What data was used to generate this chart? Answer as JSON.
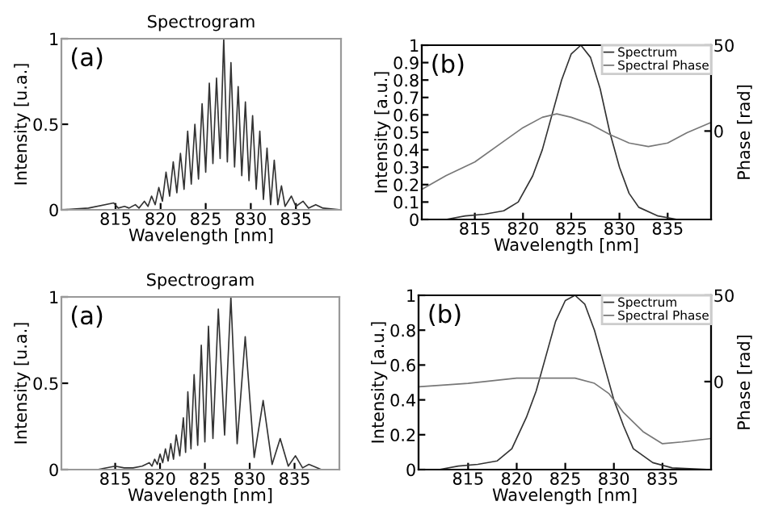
{
  "chart_data": [
    {
      "type": "line",
      "title": "Spectrogram",
      "xlabel": "Wavelength [nm]",
      "ylabel": "Intensity [u.a.]",
      "annotations": [
        "(a)"
      ],
      "xlim": [
        809,
        840
      ],
      "xticks": [
        815,
        820,
        825,
        830,
        835
      ],
      "ylim": [
        0,
        1
      ],
      "yticks": [
        0,
        0.5,
        1
      ],
      "grid": false,
      "legend": false,
      "series": [
        {
          "color": "#333333",
          "x": [
            809,
            812,
            814.8,
            815.3,
            816,
            816.5,
            817.2,
            817.6,
            818.2,
            818.6,
            819.0,
            819.4,
            819.8,
            820.2,
            820.6,
            821.0,
            821.4,
            821.8,
            822.2,
            822.6,
            823.0,
            823.4,
            823.8,
            824.2,
            824.6,
            825.0,
            825.4,
            825.8,
            826.2,
            826.6,
            827.0,
            827.4,
            827.8,
            828.2,
            828.6,
            829.0,
            829.4,
            829.8,
            830.2,
            830.6,
            831.0,
            831.4,
            831.8,
            832.2,
            832.6,
            833.0,
            833.4,
            833.8,
            834.5,
            835.0,
            835.8,
            836.4,
            837.2,
            838,
            840
          ],
          "values": [
            0.0,
            0.01,
            0.04,
            0.01,
            0.02,
            0.01,
            0.03,
            0.01,
            0.05,
            0.02,
            0.08,
            0.03,
            0.13,
            0.05,
            0.22,
            0.08,
            0.28,
            0.1,
            0.33,
            0.12,
            0.46,
            0.15,
            0.5,
            0.18,
            0.62,
            0.22,
            0.74,
            0.27,
            0.77,
            0.3,
            1.0,
            0.28,
            0.86,
            0.25,
            0.72,
            0.2,
            0.63,
            0.17,
            0.55,
            0.12,
            0.46,
            0.06,
            0.36,
            0.03,
            0.29,
            0.03,
            0.14,
            0.02,
            0.08,
            0.02,
            0.05,
            0.01,
            0.03,
            0.01,
            0.0
          ]
        }
      ]
    },
    {
      "type": "line",
      "xlabel": "Wavelength [nm]",
      "ylabel": "Intensity [a.u.]",
      "y2label": "Phase [rad]",
      "annotations": [
        "(b)"
      ],
      "xlim": [
        809.5,
        839.5
      ],
      "xticks": [
        815,
        820,
        825,
        830,
        835
      ],
      "ylim": [
        0,
        1
      ],
      "yticks": [
        0,
        0.1,
        0.2,
        0.3,
        0.4,
        0.5,
        0.6,
        0.7,
        0.8,
        0.9,
        1
      ],
      "y2lim": [
        -51.5,
        50
      ],
      "y2ticks": [
        0,
        50
      ],
      "grid": false,
      "legend": "top right",
      "series": [
        {
          "name": "Spectrum",
          "color": "#333333",
          "x": [
            809.5,
            812,
            814,
            816,
            818,
            819.5,
            821,
            822,
            823,
            824,
            825,
            826,
            827,
            828,
            829,
            830,
            831,
            832,
            834,
            836,
            839.5
          ],
          "values": [
            0.0,
            0.0,
            0.02,
            0.03,
            0.05,
            0.1,
            0.25,
            0.4,
            0.6,
            0.8,
            0.95,
            1.0,
            0.93,
            0.75,
            0.5,
            0.3,
            0.15,
            0.07,
            0.02,
            0.0,
            0.0
          ]
        },
        {
          "name": "Spectral Phase",
          "color": "#777777",
          "axis": "y2",
          "x": [
            809.5,
            812,
            815,
            818,
            820,
            822,
            823.5,
            825,
            827,
            829,
            831,
            833,
            835,
            837,
            839.5
          ],
          "values": [
            -34,
            -26,
            -18,
            -6,
            2,
            8,
            10,
            8,
            4,
            -2,
            -7,
            -9,
            -7,
            -1,
            5
          ]
        }
      ]
    },
    {
      "type": "line",
      "title": "Spectrogram",
      "xlabel": "Wavelength [nm]",
      "ylabel": "Intensity [u.a.]",
      "annotations": [
        "(a)"
      ],
      "xlim": [
        809,
        840
      ],
      "xticks": [
        815,
        820,
        825,
        830,
        835
      ],
      "ylim": [
        0,
        1
      ],
      "yticks": [
        0,
        0.5,
        1
      ],
      "grid": false,
      "legend": false,
      "series": [
        {
          "color": "#333333",
          "x": [
            809,
            813,
            815,
            816,
            817,
            818,
            818.8,
            819.1,
            819.4,
            819.7,
            820.0,
            820.3,
            820.6,
            820.9,
            821.2,
            821.5,
            821.8,
            822.2,
            822.6,
            822.85,
            823.1,
            823.45,
            823.8,
            824.2,
            824.6,
            825.0,
            825.4,
            825.9,
            826.5,
            827.2,
            827.9,
            828.6,
            829.5,
            830.5,
            831.5,
            832.5,
            833.4,
            834.3,
            835.1,
            835.9,
            836.6,
            838,
            840
          ],
          "values": [
            0.0,
            0.0,
            0.02,
            0.01,
            0.01,
            0.02,
            0.04,
            0.02,
            0.06,
            0.03,
            0.09,
            0.04,
            0.12,
            0.05,
            0.15,
            0.06,
            0.2,
            0.08,
            0.3,
            0.1,
            0.45,
            0.12,
            0.55,
            0.14,
            0.72,
            0.16,
            0.83,
            0.18,
            0.93,
            0.2,
            1.0,
            0.15,
            0.77,
            0.07,
            0.4,
            0.03,
            0.18,
            0.02,
            0.08,
            0.01,
            0.03,
            0.0,
            0.0
          ]
        }
      ]
    },
    {
      "type": "line",
      "xlabel": "Wavelength [nm]",
      "ylabel": "Intensity [a.u.]",
      "y2label": "Phase [rad]",
      "annotations": [
        "(b)"
      ],
      "xlim": [
        809.9,
        840
      ],
      "xticks": [
        815,
        820,
        825,
        830,
        835
      ],
      "ylim": [
        0,
        1
      ],
      "yticks": [
        0,
        0.2,
        0.4,
        0.6,
        0.8,
        1
      ],
      "y2lim": [
        -51,
        50
      ],
      "y2ticks": [
        0,
        50
      ],
      "grid": false,
      "legend": "top right",
      "series": [
        {
          "name": "Spectrum",
          "color": "#333333",
          "x": [
            809.9,
            812,
            814,
            816,
            818,
            819.5,
            821,
            822,
            823,
            824,
            825,
            826,
            827,
            828,
            829,
            830,
            831,
            832,
            834,
            836,
            840
          ],
          "values": [
            0.0,
            0.0,
            0.02,
            0.03,
            0.05,
            0.12,
            0.3,
            0.45,
            0.65,
            0.85,
            0.97,
            1.0,
            0.95,
            0.8,
            0.6,
            0.4,
            0.25,
            0.12,
            0.04,
            0.01,
            0.0
          ]
        },
        {
          "name": "Spectral Phase",
          "color": "#777777",
          "axis": "y2",
          "x": [
            809.9,
            815,
            820,
            823,
            826,
            828,
            829.5,
            831,
            833,
            835,
            837,
            840
          ],
          "values": [
            -3,
            -1,
            2,
            2,
            2,
            -1,
            -7,
            -18,
            -29,
            -36,
            -35,
            -33
          ]
        }
      ]
    }
  ]
}
